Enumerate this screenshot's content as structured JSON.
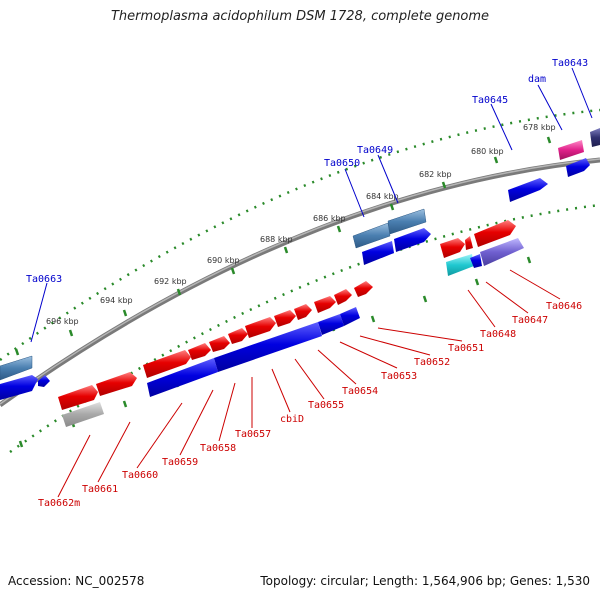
{
  "title": "Thermoplasma acidophilum DSM 1728, complete genome",
  "accession": "Accession: NC_002578",
  "summary": "Topology: circular; Length: 1,564,906 bp; Genes: 1,530",
  "colors": {
    "forward_gene": "#e60000",
    "reverse_gene": "#0000e0",
    "rna": "#4a7fb0",
    "pseudo": "#a8a8a8",
    "cyan": "#20c8d0",
    "magenta": "#e0208a",
    "purple": "#7060d0",
    "backbone": "#888888",
    "ruler": "#2a8a2a",
    "label_top": "#0000cc",
    "label_bottom": "#cc0000"
  },
  "kbp_labels": [
    "678 kbp",
    "680 kbp",
    "682 kbp",
    "684 kbp",
    "686 kbp",
    "688 kbp",
    "690 kbp",
    "692 kbp",
    "694 kbp",
    "696 kbp"
  ],
  "top_genes": [
    "Ta0643",
    "dam",
    "Ta0645",
    "Ta0649",
    "Ta0650",
    "Ta0663"
  ],
  "bottom_genes": [
    "Ta0646",
    "Ta0647",
    "Ta0648",
    "Ta0651",
    "Ta0652",
    "Ta0653",
    "Ta0654",
    "Ta0655",
    "cbiD",
    "Ta0657",
    "Ta0658",
    "Ta0659",
    "Ta0660",
    "Ta0661",
    "Ta0662m"
  ]
}
